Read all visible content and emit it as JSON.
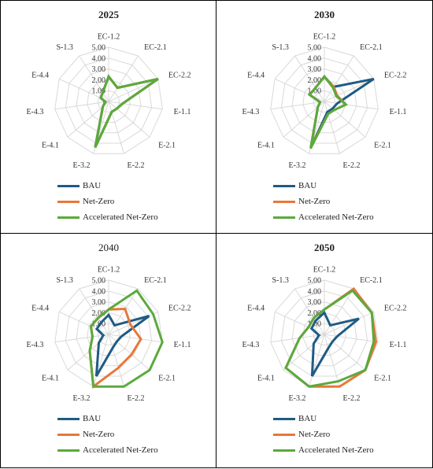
{
  "chart_data": [
    {
      "type": "radar",
      "title": "2025",
      "title_bold": true,
      "axes": [
        "EC-1.2",
        "EC-2.1",
        "EC-2.2",
        "E-1.1",
        "E-2.1",
        "E-2.2",
        "E-3.2",
        "E-4.1",
        "E-4.3",
        "E-4.4",
        "S-1.3"
      ],
      "rlim": [
        0,
        5
      ],
      "ticks": [
        "-",
        "1.00",
        "2.00",
        "3.00",
        "4.00",
        "5.00"
      ],
      "series": [
        {
          "name": "BAU",
          "color": "#1f5b84",
          "values": [
            2.3,
            1.5,
            5.0,
            1.3,
            1.0,
            1.0,
            4.4,
            0.7,
            0.3,
            0.8,
            1.0
          ]
        },
        {
          "name": "Net-Zero",
          "color": "#e8773a",
          "values": [
            2.3,
            1.5,
            5.0,
            1.3,
            1.0,
            1.0,
            4.4,
            0.7,
            0.3,
            0.8,
            1.0
          ]
        },
        {
          "name": "Accelerated Net-Zero",
          "color": "#5aaa3c",
          "values": [
            2.3,
            1.5,
            5.0,
            1.3,
            1.0,
            1.0,
            4.4,
            0.7,
            0.3,
            0.8,
            1.0
          ]
        }
      ]
    },
    {
      "type": "radar",
      "title": "2030",
      "title_bold": true,
      "axes": [
        "EC-1.2",
        "EC-2.1",
        "EC-2.2",
        "E-1.1",
        "E-2.1",
        "E-2.2",
        "E-3.2",
        "E-4.1",
        "E-4.3",
        "E-4.4",
        "S-1.3"
      ],
      "rlim": [
        0,
        5
      ],
      "ticks": [
        "-",
        "1.00",
        "2.00",
        "3.00",
        "4.00",
        "5.00"
      ],
      "series": [
        {
          "name": "BAU",
          "color": "#1f5b84",
          "values": [
            2.3,
            1.6,
            5.0,
            1.2,
            1.0,
            1.0,
            4.4,
            0.8,
            0.4,
            1.5,
            1.5
          ]
        },
        {
          "name": "Net-Zero",
          "color": "#e8773a",
          "values": [
            2.3,
            1.6,
            1.3,
            2.0,
            1.2,
            1.2,
            4.3,
            0.8,
            0.4,
            1.5,
            1.5
          ]
        },
        {
          "name": "Accelerated Net-Zero",
          "color": "#5aaa3c",
          "values": [
            2.3,
            1.5,
            1.2,
            2.0,
            1.2,
            1.2,
            4.5,
            0.8,
            0.4,
            1.5,
            1.5
          ]
        }
      ]
    },
    {
      "type": "radar",
      "title": "2040",
      "title_bold": false,
      "axes": [
        "EC-1.2",
        "EC-2.1",
        "EC-2.2",
        "E-1.1",
        "E-2.1",
        "E-2.2",
        "E-3.2",
        "E-4.1",
        "E-4.3",
        "E-4.4",
        "S-1.3"
      ],
      "rlim": [
        0,
        5
      ],
      "ticks": [
        "-",
        "1.00",
        "2.00",
        "3.00",
        "4.00",
        "5.00"
      ],
      "series": [
        {
          "name": "BAU",
          "color": "#1f5b84",
          "values": [
            1.8,
            1.0,
            4.1,
            1.2,
            1.0,
            1.3,
            4.0,
            1.2,
            0.5,
            1.2,
            1.3
          ]
        },
        {
          "name": "Net-Zero",
          "color": "#e8773a",
          "values": [
            2.3,
            2.8,
            2.2,
            3.0,
            2.8,
            3.2,
            5.0,
            2.3,
            1.5,
            1.8,
            1.8
          ]
        },
        {
          "name": "Accelerated Net-Zero",
          "color": "#5aaa3c",
          "values": [
            2.3,
            4.8,
            4.5,
            5.0,
            5.0,
            5.0,
            5.0,
            2.3,
            1.5,
            1.8,
            1.8
          ]
        }
      ]
    },
    {
      "type": "radar",
      "title": "2050",
      "title_bold": true,
      "axes": [
        "EC-1.2",
        "EC-2.1",
        "EC-2.2",
        "E-1.1",
        "E-2.1",
        "E-2.2",
        "E-3.2",
        "E-4.1",
        "E-4.3",
        "E-4.4",
        "S-1.3"
      ],
      "rlim": [
        0,
        5
      ],
      "ticks": [
        "-",
        "1.00",
        "2.00",
        "3.00",
        "4.00",
        "5.00"
      ],
      "series": [
        {
          "name": "BAU",
          "color": "#1f5b84",
          "values": [
            2.0,
            1.0,
            3.5,
            1.2,
            1.0,
            1.3,
            4.0,
            1.3,
            0.5,
            1.3,
            1.5
          ]
        },
        {
          "name": "Net-Zero",
          "color": "#e8773a",
          "values": [
            2.3,
            5.0,
            4.8,
            4.8,
            5.0,
            5.0,
            5.0,
            4.7,
            2.3,
            1.6,
            1.8
          ]
        },
        {
          "name": "Accelerated Net-Zero",
          "color": "#5aaa3c",
          "values": [
            2.3,
            4.8,
            4.8,
            4.6,
            5.0,
            4.5,
            5.0,
            4.7,
            2.3,
            1.6,
            1.8
          ]
        }
      ]
    }
  ]
}
